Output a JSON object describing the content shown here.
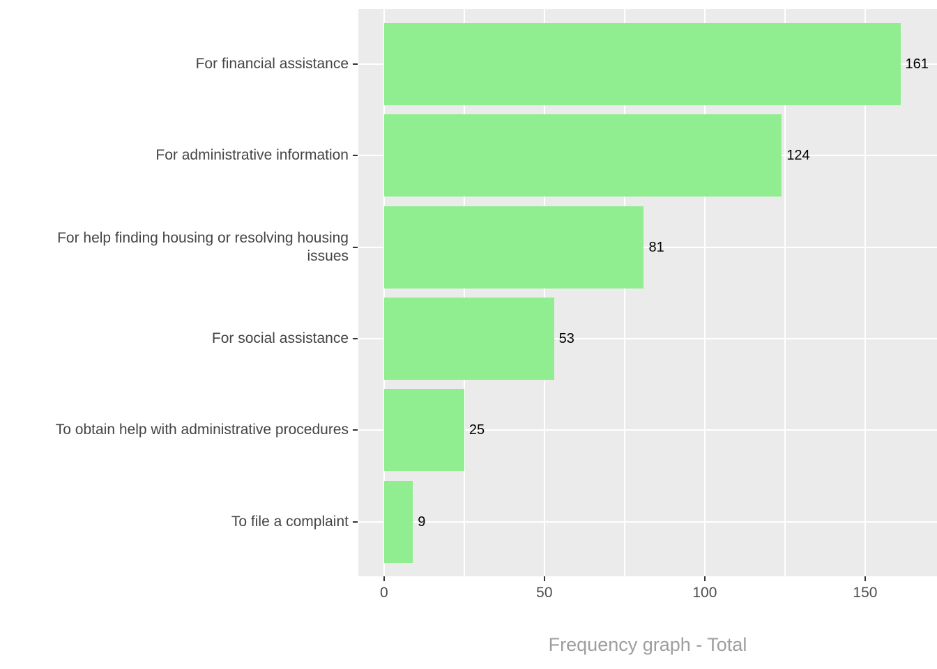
{
  "chart_data": {
    "type": "bar",
    "orientation": "horizontal",
    "title": "Frequency graph - Total",
    "xlabel": "",
    "ylabel": "",
    "categories": [
      "For financial assistance",
      "For administrative information",
      "For help finding housing or resolving housing issues",
      "For social assistance",
      "To obtain help with administrative procedures",
      "To file a complaint"
    ],
    "values": [
      161,
      124,
      81,
      53,
      25,
      9
    ],
    "value_labels": [
      "161",
      "124",
      "81",
      "53",
      "25",
      "9"
    ],
    "x_ticks": [
      0,
      50,
      100,
      150
    ],
    "x_tick_labels": [
      "0",
      "50",
      "100",
      "150"
    ],
    "x_minor_ticks": [
      25,
      75,
      125
    ],
    "xlim": [
      -8,
      172.4
    ],
    "grid": true,
    "legend": "none",
    "colors": {
      "bar": "#90EE90",
      "panel_background": "#EBEBEB",
      "gridline": "#FFFFFF",
      "axis_text": "#4D4D4D",
      "category_text": "#444444",
      "value_text": "#000000",
      "tick_mark": "#333333",
      "title_text": "#9E9E9E",
      "figure_background": "#FFFFFF"
    }
  }
}
